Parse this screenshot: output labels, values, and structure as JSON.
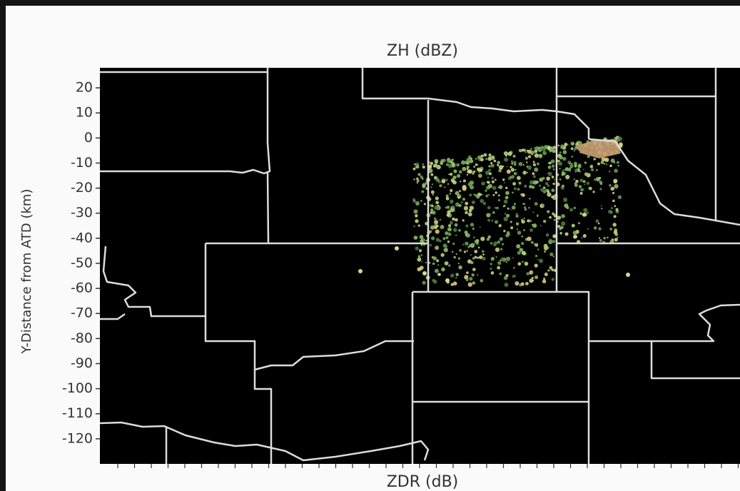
{
  "chart_data": {
    "type": "radar-map",
    "title": "ZH (dBZ)",
    "ylabel": "Y-Distance from ATD (km)",
    "xlabel": "ZDR (dB)",
    "ylim": [
      -130,
      28
    ],
    "yticks": [
      20,
      10,
      0,
      -10,
      -20,
      -30,
      -40,
      -50,
      -60,
      -70,
      -80,
      -90,
      -100,
      -110,
      -120
    ]
  }
}
